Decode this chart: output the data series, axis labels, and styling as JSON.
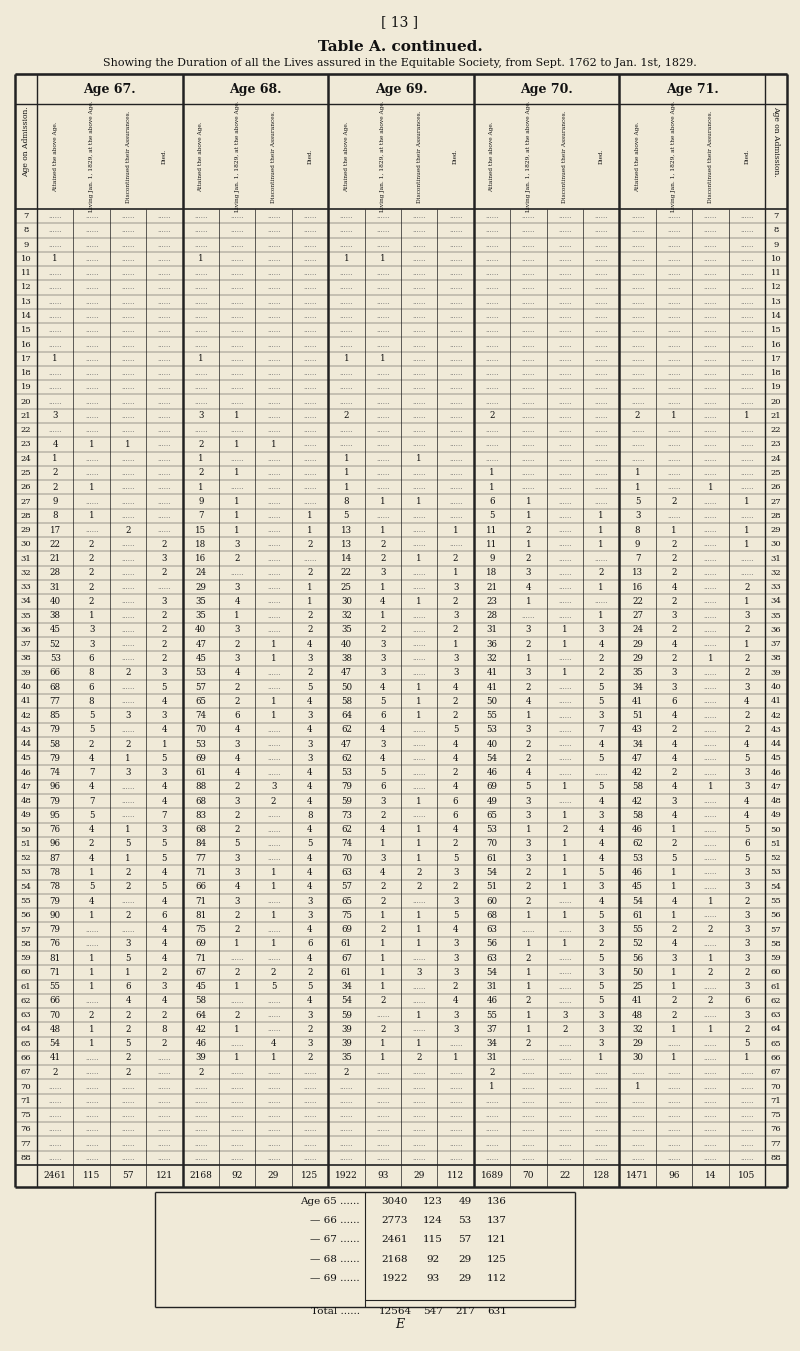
{
  "page_num": "[ 13 ]",
  "title": "Table A. continued.",
  "subtitle": "Showing the Duration of all the Lives assured in the Equitable Society, from Sept. 1762 to Jan. 1st, 1829.",
  "age_headers": [
    "Age 67.",
    "Age 68.",
    "Age 69.",
    "Age 70.",
    "Age 71."
  ],
  "sub_labels": [
    "Attained the above Age.",
    "Living Jan. 1, 1829, at the above Age.",
    "Discontinued their Assurances.",
    "Died."
  ],
  "left_col_header": "Age on Admission.",
  "right_col_header": "Age on Admission.",
  "row_ages": [
    7,
    8,
    9,
    10,
    11,
    12,
    13,
    14,
    15,
    16,
    17,
    18,
    19,
    20,
    21,
    22,
    23,
    24,
    25,
    26,
    27,
    28,
    29,
    30,
    31,
    32,
    33,
    34,
    35,
    36,
    37,
    38,
    39,
    40,
    41,
    42,
    43,
    44,
    45,
    46,
    47,
    48,
    49,
    50,
    51,
    52,
    53,
    54,
    55,
    56,
    57,
    58,
    59,
    60,
    61,
    62,
    63,
    64,
    65,
    66,
    67,
    70,
    71,
    75,
    76,
    77,
    88
  ],
  "rows": {
    "7": [
      "",
      "",
      "",
      "",
      "",
      "",
      "",
      "",
      "",
      "",
      "",
      "",
      "",
      "",
      "",
      "",
      "",
      "",
      "",
      ""
    ],
    "8": [
      "",
      "",
      "",
      "",
      "",
      "",
      "",
      "",
      "",
      "",
      "",
      "",
      "",
      "",
      "",
      "",
      "",
      "",
      "",
      ""
    ],
    "9": [
      "",
      "",
      "",
      "",
      "",
      "",
      "",
      "",
      "",
      "",
      "",
      "",
      "",
      "",
      "",
      "",
      "",
      "",
      "",
      ""
    ],
    "10": [
      "1",
      "",
      "",
      "",
      "1",
      "",
      "",
      "",
      "1",
      "1",
      "",
      "",
      "",
      "",
      "",
      "",
      "",
      "",
      "",
      ""
    ],
    "11": [
      "",
      "",
      "",
      "",
      "",
      "",
      "",
      "",
      "",
      "",
      "",
      "",
      "",
      "",
      "",
      "",
      "",
      "",
      "",
      ""
    ],
    "12": [
      "",
      "",
      "",
      "",
      "",
      "",
      "",
      "",
      "",
      "",
      "",
      "",
      "",
      "",
      "",
      "",
      "",
      "",
      "",
      ""
    ],
    "13": [
      "",
      "",
      "",
      "",
      "",
      "",
      "",
      "",
      "",
      "",
      "",
      "",
      "",
      "",
      "",
      "",
      "",
      "",
      "",
      ""
    ],
    "14": [
      "",
      "",
      "",
      "",
      "",
      "",
      "",
      "",
      "",
      "",
      "",
      "",
      "",
      "",
      "",
      "",
      "",
      "",
      "",
      ""
    ],
    "15": [
      "",
      "",
      "",
      "",
      "",
      "",
      "",
      "",
      "",
      "",
      "",
      "",
      "",
      "",
      "",
      "",
      "",
      "",
      "",
      ""
    ],
    "16": [
      "",
      "",
      "",
      "",
      "",
      "",
      "",
      "",
      "",
      "",
      "",
      "",
      "",
      "",
      "",
      "",
      "",
      "",
      "",
      ""
    ],
    "17": [
      "1",
      "",
      "",
      "",
      "1",
      "",
      "",
      "",
      "1",
      "1",
      "",
      "",
      "",
      "",
      "",
      "",
      "",
      "",
      "",
      ""
    ],
    "18": [
      "",
      "",
      "",
      "",
      "",
      "",
      "",
      "",
      "",
      "",
      "",
      "",
      "",
      "",
      "",
      "",
      "",
      "",
      "",
      ""
    ],
    "19": [
      "",
      "",
      "",
      "",
      "",
      "",
      "",
      "",
      "",
      "",
      "",
      "",
      "",
      "",
      "",
      "",
      "",
      "",
      "",
      ""
    ],
    "20": [
      "",
      "",
      "",
      "",
      "",
      "",
      "",
      "",
      "",
      "",
      "",
      "",
      "",
      "",
      "",
      "",
      "",
      "",
      "",
      ""
    ],
    "21": [
      "3",
      "",
      "",
      "",
      "3",
      "1",
      "",
      "",
      "2",
      "",
      "",
      "",
      "2",
      "",
      "",
      "",
      "2",
      "1",
      "",
      "1"
    ],
    "22": [
      "",
      "",
      "",
      "",
      "",
      "",
      "",
      "",
      "",
      "",
      "",
      "",
      "",
      "",
      "",
      "",
      "",
      "",
      "",
      ""
    ],
    "23": [
      "4",
      "1",
      "1",
      "",
      "2",
      "1",
      "1",
      "",
      "",
      "",
      "",
      "",
      "",
      "",
      "",
      "",
      "",
      "",
      "",
      ""
    ],
    "24": [
      "1",
      "",
      "",
      "",
      "1",
      "",
      "",
      "",
      "1",
      "",
      "1",
      "",
      "",
      "",
      "",
      "",
      "",
      "",
      "",
      ""
    ],
    "25": [
      "2",
      "",
      "",
      "",
      "2",
      "1",
      "",
      "",
      "1",
      "",
      "",
      "",
      "1",
      "",
      "",
      "",
      "1",
      "",
      "",
      ""
    ],
    "26": [
      "2",
      "1",
      "",
      "",
      "1",
      "",
      "",
      "",
      "1",
      "",
      "",
      "",
      "1",
      "",
      "",
      "",
      "1",
      "",
      "1",
      ""
    ],
    "27": [
      "9",
      "",
      "",
      "",
      "9",
      "1",
      "",
      "",
      "8",
      "1",
      "1",
      "",
      "6",
      "1",
      "",
      "",
      "5",
      "2",
      "",
      "1"
    ],
    "28": [
      "8",
      "1",
      "",
      "",
      "7",
      "1",
      "",
      "1",
      "5",
      "",
      "",
      "",
      "5",
      "1",
      "",
      "1",
      "3",
      "",
      "",
      ""
    ],
    "29": [
      "17",
      "",
      "2",
      "",
      "15",
      "1",
      "",
      "1",
      "13",
      "1",
      "",
      "1",
      "11",
      "2",
      "",
      "1",
      "8",
      "1",
      "",
      "1"
    ],
    "30": [
      "22",
      "2",
      "",
      "2",
      "18",
      "3",
      "",
      "2",
      "13",
      "2",
      "",
      "",
      "11",
      "1",
      "",
      "1",
      "9",
      "2",
      "",
      "1"
    ],
    "31": [
      "21",
      "2",
      "",
      "3",
      "16",
      "2",
      "",
      "",
      "14",
      "2",
      "1",
      "2",
      "9",
      "2",
      "",
      "",
      "7",
      "2",
      "",
      ""
    ],
    "32": [
      "28",
      "2",
      "",
      "2",
      "24",
      "",
      "",
      "2",
      "22",
      "3",
      "",
      "1",
      "18",
      "3",
      "",
      "2",
      "13",
      "2",
      "",
      ""
    ],
    "33": [
      "31",
      "2",
      "",
      "",
      "29",
      "3",
      "",
      "1",
      "25",
      "1",
      "",
      "3",
      "21",
      "4",
      "",
      "1",
      "16",
      "4",
      "",
      "2"
    ],
    "34": [
      "40",
      "2",
      "",
      "3",
      "35",
      "4",
      "",
      "1",
      "30",
      "4",
      "1",
      "2",
      "23",
      "1",
      "",
      "",
      "22",
      "2",
      "",
      "1"
    ],
    "35": [
      "38",
      "1",
      "",
      "2",
      "35",
      "1",
      "",
      "2",
      "32",
      "1",
      "",
      "3",
      "28",
      "",
      "",
      "1",
      "27",
      "3",
      "",
      "3"
    ],
    "36": [
      "45",
      "3",
      "",
      "2",
      "40",
      "3",
      "",
      "2",
      "35",
      "2",
      "",
      "2",
      "31",
      "3",
      "1",
      "3",
      "24",
      "2",
      "",
      "2"
    ],
    "37": [
      "52",
      "3",
      "",
      "2",
      "47",
      "2",
      "1",
      "4",
      "40",
      "3",
      "",
      "1",
      "36",
      "2",
      "1",
      "4",
      "29",
      "4",
      "",
      "1"
    ],
    "38": [
      "53",
      "6",
      "",
      "2",
      "45",
      "3",
      "1",
      "3",
      "38",
      "3",
      "",
      "3",
      "32",
      "1",
      "",
      "2",
      "29",
      "2",
      "1",
      "2"
    ],
    "39": [
      "66",
      "8",
      "2",
      "3",
      "53",
      "4",
      "",
      "2",
      "47",
      "3",
      "",
      "3",
      "41",
      "3",
      "1",
      "2",
      "35",
      "3",
      "",
      "2"
    ],
    "40": [
      "68",
      "6",
      "",
      "5",
      "57",
      "2",
      "",
      "5",
      "50",
      "4",
      "1",
      "4",
      "41",
      "2",
      "",
      "5",
      "34",
      "3",
      "",
      "3"
    ],
    "41": [
      "77",
      "8",
      "",
      "4",
      "65",
      "2",
      "1",
      "4",
      "58",
      "5",
      "1",
      "2",
      "50",
      "4",
      "",
      "5",
      "41",
      "6",
      "",
      "4"
    ],
    "42": [
      "85",
      "5",
      "3",
      "3",
      "74",
      "6",
      "1",
      "3",
      "64",
      "6",
      "1",
      "2",
      "55",
      "1",
      "",
      "3",
      "51",
      "4",
      "",
      "2"
    ],
    "43": [
      "79",
      "5",
      "",
      "4",
      "70",
      "4",
      "",
      "4",
      "62",
      "4",
      "",
      "5",
      "53",
      "3",
      "",
      "7",
      "43",
      "2",
      "",
      "2"
    ],
    "44": [
      "58",
      "2",
      "2",
      "1",
      "53",
      "3",
      "",
      "3",
      "47",
      "3",
      "",
      "4",
      "40",
      "2",
      "",
      "4",
      "34",
      "4",
      "",
      "4"
    ],
    "45": [
      "79",
      "4",
      "1",
      "5",
      "69",
      "4",
      "",
      "3",
      "62",
      "4",
      "",
      "4",
      "54",
      "2",
      "",
      "5",
      "47",
      "4",
      "",
      "5"
    ],
    "46": [
      "74",
      "7",
      "3",
      "3",
      "61",
      "4",
      "",
      "4",
      "53",
      "5",
      "",
      "2",
      "46",
      "4",
      "",
      "",
      "42",
      "2",
      "",
      "3"
    ],
    "47": [
      "96",
      "4",
      "",
      "4",
      "88",
      "2",
      "3",
      "4",
      "79",
      "6",
      "",
      "4",
      "69",
      "5",
      "1",
      "5",
      "58",
      "4",
      "1",
      "3"
    ],
    "48": [
      "79",
      "7",
      "",
      "4",
      "68",
      "3",
      "2",
      "4",
      "59",
      "3",
      "1",
      "6",
      "49",
      "3",
      "",
      "4",
      "42",
      "3",
      "",
      "4"
    ],
    "49": [
      "95",
      "5",
      "",
      "7",
      "83",
      "2",
      "",
      "8",
      "73",
      "2",
      "",
      "6",
      "65",
      "3",
      "1",
      "3",
      "58",
      "4",
      "",
      "4"
    ],
    "50": [
      "76",
      "4",
      "1",
      "3",
      "68",
      "2",
      "",
      "4",
      "62",
      "4",
      "1",
      "4",
      "53",
      "1",
      "2",
      "4",
      "46",
      "1",
      "",
      "5"
    ],
    "51": [
      "96",
      "2",
      "5",
      "5",
      "84",
      "5",
      "",
      "5",
      "74",
      "1",
      "1",
      "2",
      "70",
      "3",
      "1",
      "4",
      "62",
      "2",
      "",
      "6"
    ],
    "52": [
      "87",
      "4",
      "1",
      "5",
      "77",
      "3",
      "",
      "4",
      "70",
      "3",
      "1",
      "5",
      "61",
      "3",
      "1",
      "4",
      "53",
      "5",
      "",
      "5"
    ],
    "53": [
      "78",
      "1",
      "2",
      "4",
      "71",
      "3",
      "1",
      "4",
      "63",
      "4",
      "2",
      "3",
      "54",
      "2",
      "1",
      "5",
      "46",
      "1",
      "",
      "3"
    ],
    "54": [
      "78",
      "5",
      "2",
      "5",
      "66",
      "4",
      "1",
      "4",
      "57",
      "2",
      "2",
      "2",
      "51",
      "2",
      "1",
      "3",
      "45",
      "1",
      "",
      "3"
    ],
    "55": [
      "79",
      "4",
      "",
      "4",
      "71",
      "3",
      "",
      "3",
      "65",
      "2",
      "",
      "3",
      "60",
      "2",
      "",
      "4",
      "54",
      "4",
      "1",
      "2"
    ],
    "56": [
      "90",
      "1",
      "2",
      "6",
      "81",
      "2",
      "1",
      "3",
      "75",
      "1",
      "1",
      "5",
      "68",
      "1",
      "1",
      "5",
      "61",
      "1",
      "",
      "3"
    ],
    "57": [
      "79",
      "",
      "",
      "4",
      "75",
      "2",
      "",
      "4",
      "69",
      "2",
      "1",
      "4",
      "63",
      "",
      "",
      "3",
      "55",
      "2",
      "2",
      "3"
    ],
    "58": [
      "76",
      "",
      "3",
      "4",
      "69",
      "1",
      "1",
      "6",
      "61",
      "1",
      "1",
      "3",
      "56",
      "1",
      "1",
      "2",
      "52",
      "4",
      "",
      "3"
    ],
    "59": [
      "81",
      "1",
      "5",
      "4",
      "71",
      "",
      "",
      "4",
      "67",
      "1",
      "",
      "3",
      "63",
      "2",
      "",
      "5",
      "56",
      "3",
      "1",
      "3"
    ],
    "60": [
      "71",
      "1",
      "1",
      "2",
      "67",
      "2",
      "2",
      "2",
      "61",
      "1",
      "3",
      "3",
      "54",
      "1",
      "",
      "3",
      "50",
      "1",
      "2",
      "2"
    ],
    "61": [
      "55",
      "1",
      "6",
      "3",
      "45",
      "1",
      "5",
      "5",
      "34",
      "1",
      "",
      "2",
      "31",
      "1",
      "",
      "5",
      "25",
      "1",
      "",
      "3"
    ],
    "62": [
      "66",
      "",
      "4",
      "4",
      "58",
      "",
      "",
      "4",
      "54",
      "2",
      "",
      "4",
      "46",
      "2",
      "",
      "5",
      "41",
      "2",
      "2",
      "6"
    ],
    "63": [
      "70",
      "2",
      "2",
      "2",
      "64",
      "2",
      "",
      "3",
      "59",
      "",
      "1",
      "3",
      "55",
      "1",
      "3",
      "3",
      "48",
      "2",
      "",
      "3"
    ],
    "64": [
      "48",
      "1",
      "2",
      "8",
      "42",
      "1",
      "",
      "2",
      "39",
      "2",
      "",
      "3",
      "37",
      "1",
      "2",
      "3",
      "32",
      "1",
      "1",
      "2"
    ],
    "65": [
      "54",
      "1",
      "5",
      "2",
      "46",
      "",
      "4",
      "3",
      "39",
      "1",
      "1",
      "",
      "34",
      "2",
      "",
      "3",
      "29",
      "",
      "",
      "5"
    ],
    "66": [
      "41",
      "",
      "2",
      "",
      "39",
      "1",
      "1",
      "2",
      "35",
      "1",
      "2",
      "1",
      "31",
      "",
      "",
      "1",
      "30",
      "1",
      "",
      "1"
    ],
    "67": [
      "2",
      "",
      "2",
      "",
      "2",
      "",
      "",
      "",
      "2",
      "",
      "",
      "",
      "2",
      "",
      "",
      "",
      "",
      "",
      "",
      ""
    ],
    "70": [
      "",
      "",
      "",
      "",
      "",
      "",
      "",
      "",
      "",
      "",
      "",
      "",
      "1",
      "",
      "",
      "",
      "1",
      "",
      "",
      ""
    ],
    "71": [
      "",
      "",
      "",
      "",
      "",
      "",
      "",
      "",
      "",
      "",
      "",
      "",
      "",
      "",
      "",
      "",
      "",
      "",
      "",
      ""
    ],
    "75": [
      "",
      "",
      "",
      "",
      "",
      "",
      "",
      "",
      "",
      "",
      "",
      "",
      "",
      "",
      "",
      "",
      "",
      "",
      "",
      ""
    ],
    "76": [
      "",
      "",
      "",
      "",
      "",
      "",
      "",
      "",
      "",
      "",
      "",
      "",
      "",
      "",
      "",
      "",
      "",
      "",
      "",
      ""
    ],
    "77": [
      "",
      "",
      "",
      "",
      "",
      "",
      "",
      "",
      "",
      "",
      "",
      "",
      "",
      "",
      "",
      "",
      "",
      "",
      "",
      ""
    ],
    "88": [
      "",
      "",
      "",
      "",
      "",
      "",
      "",
      "",
      "",
      "",
      "",
      "",
      "",
      "",
      "",
      "",
      "",
      "",
      "",
      ""
    ]
  },
  "totals": [
    "2461",
    "115",
    "57",
    "121",
    "2168",
    "92",
    "29",
    "125",
    "1922",
    "93",
    "29",
    "112",
    "1689",
    "70",
    "22",
    "128",
    "1471",
    "96",
    "14",
    "105"
  ],
  "summary_lines": [
    [
      "Age 65 ......",
      "3040",
      "123",
      "49",
      "136"
    ],
    [
      "— 66 ......",
      "2773",
      "124",
      "53",
      "137"
    ],
    [
      "— 67 ......",
      "2461",
      "115",
      "57",
      "121"
    ],
    [
      "— 68 ......",
      "2168",
      "92",
      "29",
      "125"
    ],
    [
      "— 69 ......",
      "1922",
      "93",
      "29",
      "112"
    ]
  ],
  "total_line": [
    "Total ......",
    "12564",
    "547",
    "217",
    "631"
  ],
  "footer_letter": "E",
  "bg_color": "#f0ead8",
  "text_color": "#111111",
  "line_color": "#222222",
  "dot_color": "#666666"
}
